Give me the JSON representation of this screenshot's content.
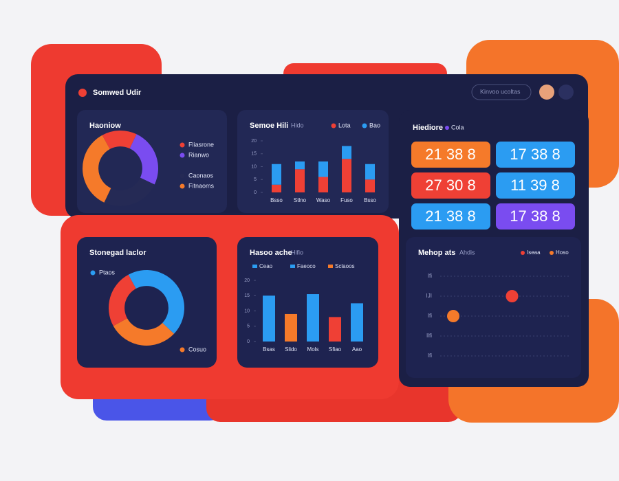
{
  "header": {
    "title": "Somwed Udir",
    "search": "Kinvoo ucoltas"
  },
  "tiles": [
    {
      "label": "21 38 8",
      "color": "#f57a2a"
    },
    {
      "label": "17 38 8",
      "color": "#2b9cf2"
    },
    {
      "label": "27 30 8",
      "color": "#ef4035"
    },
    {
      "label": "11 39 8",
      "color": "#2b9cf2"
    },
    {
      "label": "21 38 8",
      "color": "#2b9cf2"
    },
    {
      "label": "17 38 8",
      "color": "#7a4cf0"
    }
  ],
  "tiles_title": "Hiediore",
  "tiles_tag": "Cola",
  "chart_data": [
    {
      "type": "pie",
      "title": "Haoniow",
      "categories": [
        "Fliasrone",
        "Rianwo",
        "Caonaos",
        "Fitnaoms"
      ],
      "values": [
        15,
        25,
        25,
        35
      ],
      "colors": [
        "#ef4035",
        "#7a4cf0",
        "#252a55",
        "#f57a2a"
      ]
    },
    {
      "type": "stacked-bar",
      "title": "Semoe Hili",
      "subtitle": "Hido",
      "categories": [
        "Bsso",
        "Stlno",
        "Waso",
        "Fuso",
        "Bsso"
      ],
      "series": [
        {
          "name": "Lota",
          "color": "#ef4035",
          "values": [
            3,
            9,
            6,
            13,
            5
          ]
        },
        {
          "name": "Bao",
          "color": "#2b9cf2",
          "values": [
            8,
            3,
            6,
            5,
            6
          ]
        }
      ],
      "ylim": [
        0,
        20
      ],
      "yticks": [
        0,
        5,
        10,
        15,
        20
      ]
    },
    {
      "type": "pie",
      "title": "Stonegad laclor",
      "categories": [
        "Ptaos",
        "Cosuo",
        null
      ],
      "values": [
        45,
        30,
        25
      ],
      "colors": [
        "#2b9cf2",
        "#f57a2a",
        "#ef4035"
      ]
    },
    {
      "type": "bar",
      "title": "Hasoo ache",
      "subtitle": "Hifio",
      "categories": [
        "Bsas",
        "Slido",
        "Mols",
        "Sfiao",
        "Aao"
      ],
      "values": [
        15,
        9,
        15.5,
        8,
        12.5
      ],
      "colors": [
        "#2b9cf2",
        "#f57a2a",
        "#2b9cf2",
        "#ef4035",
        "#2b9cf2"
      ],
      "legend": [
        {
          "name": "Ceao",
          "color": "#2b9cf2"
        },
        {
          "name": "Faeoco",
          "color": "#2b9cf2"
        },
        {
          "name": "Sclaoos",
          "color": "#f57a2a"
        }
      ],
      "ylim": [
        0,
        20
      ],
      "yticks": [
        0,
        5,
        10,
        15,
        20
      ]
    },
    {
      "type": "dot",
      "title": "Mehop ats",
      "subtitle": "Ahdis",
      "categories": [
        "Ifi",
        "IJI",
        "Ifi",
        "Ilfi",
        "Ifi"
      ],
      "series": [
        {
          "name": "Iseaa",
          "color": "#ef4035",
          "values": [
            null,
            55,
            null,
            null,
            null
          ]
        },
        {
          "name": "Hoso",
          "color": "#f57a2a",
          "values": [
            null,
            null,
            10,
            null,
            null
          ]
        }
      ],
      "xlim": [
        0,
        100
      ]
    }
  ]
}
